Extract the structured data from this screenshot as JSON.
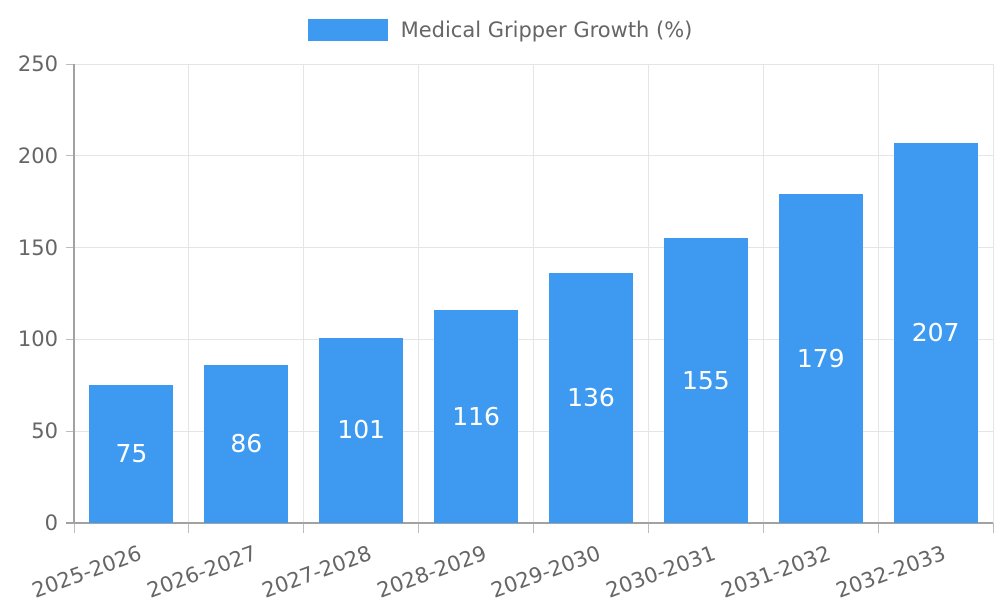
{
  "chart_data": {
    "type": "bar",
    "title": "Medical Gripper Growth (%)",
    "legend_label": "Medical Gripper Growth (%)",
    "legend_position": "top",
    "categories": [
      "2025-2026",
      "2026-2027",
      "2027-2028",
      "2028-2029",
      "2029-2030",
      "2030-2031",
      "2031-2032",
      "2032-2033"
    ],
    "series": [
      {
        "name": "Medical Gripper Growth (%)",
        "values": [
          75,
          86,
          101,
          116,
          136,
          155,
          179,
          207
        ]
      }
    ],
    "ylabel": "",
    "xlabel": "",
    "ylim": [
      0,
      250
    ],
    "ytick_step": 50,
    "yticks": [
      0,
      50,
      100,
      150,
      200,
      250
    ],
    "grid": true,
    "value_labels_inside_bars": true,
    "x_label_rotation_deg": -20,
    "colors": {
      "bar": "#3d9af0",
      "value_label": "#ffffff",
      "tick_label": "#666666",
      "grid": "#e5e5e5",
      "axis": "#a2a2a2"
    }
  }
}
